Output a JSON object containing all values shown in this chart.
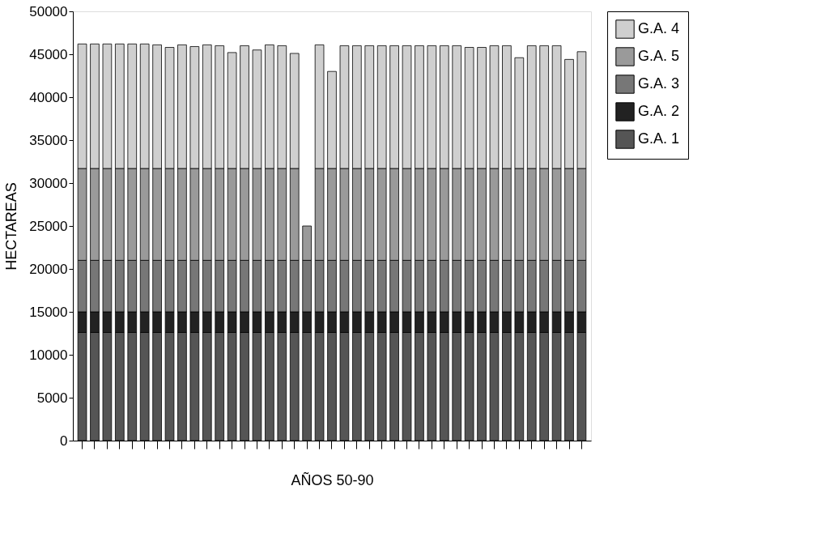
{
  "chart_data": {
    "type": "bar",
    "xlabel": "AÑOS 50-90",
    "ylabel": "HECTAREAS",
    "categories": [
      null,
      null,
      null,
      null,
      null,
      null,
      null,
      null,
      null,
      null,
      null,
      null,
      null,
      null,
      null,
      null,
      null,
      null,
      null,
      null,
      null,
      null,
      null,
      null,
      null,
      null,
      null,
      null,
      null,
      null,
      null,
      null,
      null,
      null,
      null,
      null,
      null,
      null,
      null,
      null,
      null
    ],
    "stacked": true,
    "series": [
      {
        "name": "G.A. 1",
        "color": "#555555",
        "values": [
          12600,
          12600,
          12600,
          12600,
          12600,
          12600,
          12600,
          12600,
          12600,
          12600,
          12600,
          12600,
          12600,
          12600,
          12600,
          12600,
          12600,
          12600,
          12600,
          12600,
          12600,
          12600,
          12600,
          12600,
          12600,
          12600,
          12600,
          12600,
          12600,
          12600,
          12600,
          12600,
          12600,
          12600,
          12600,
          12600,
          12600,
          12600,
          12600,
          12600,
          12600
        ]
      },
      {
        "name": "G.A. 2",
        "color": "#222222",
        "values": [
          2400,
          2400,
          2400,
          2400,
          2400,
          2400,
          2400,
          2400,
          2400,
          2400,
          2400,
          2400,
          2400,
          2400,
          2400,
          2400,
          2400,
          2400,
          2400,
          2400,
          2400,
          2400,
          2400,
          2400,
          2400,
          2400,
          2400,
          2400,
          2400,
          2400,
          2400,
          2400,
          2400,
          2400,
          2400,
          2400,
          2400,
          2400,
          2400,
          2400,
          2400
        ]
      },
      {
        "name": "G.A. 3",
        "color": "#777777",
        "values": [
          6000,
          6000,
          6000,
          6000,
          6000,
          6000,
          6000,
          6000,
          6000,
          6000,
          6000,
          6000,
          6000,
          6000,
          6000,
          6000,
          6000,
          6000,
          6000,
          6000,
          6000,
          6000,
          6000,
          6000,
          6000,
          6000,
          6000,
          6000,
          6000,
          6000,
          6000,
          6000,
          6000,
          6000,
          6000,
          6000,
          6000,
          6000,
          6000,
          6000,
          6000
        ]
      },
      {
        "name": "G.A. 5",
        "color": "#9a9a9a",
        "values": [
          10700,
          10700,
          10700,
          10700,
          10700,
          10700,
          10700,
          10700,
          10700,
          10700,
          10700,
          10700,
          10700,
          10700,
          10700,
          10700,
          10700,
          10700,
          4000,
          10700,
          10700,
          10700,
          10700,
          10700,
          10700,
          10700,
          10700,
          10700,
          10700,
          10700,
          10700,
          10700,
          10700,
          10700,
          10700,
          10700,
          10700,
          10700,
          10700,
          10700,
          10700
        ]
      },
      {
        "name": "G.A. 4",
        "color": "#cfcfcf",
        "values": [
          14500,
          14500,
          14500,
          14500,
          14500,
          14500,
          14400,
          14100,
          14400,
          14200,
          14400,
          14300,
          13500,
          14300,
          13800,
          14400,
          14300,
          13400,
          null,
          14400,
          11300,
          14300,
          14300,
          14300,
          14300,
          14300,
          14300,
          14300,
          14300,
          14300,
          14300,
          14100,
          14100,
          14300,
          14300,
          12900,
          14300,
          14300,
          14300,
          12700,
          13600
        ]
      }
    ],
    "ylim": [
      0,
      50000
    ],
    "yticks": [
      0,
      5000,
      10000,
      15000,
      20000,
      25000,
      30000,
      35000,
      40000,
      45000,
      50000
    ],
    "tick_labels": "y",
    "grid": false,
    "legend": "right"
  }
}
